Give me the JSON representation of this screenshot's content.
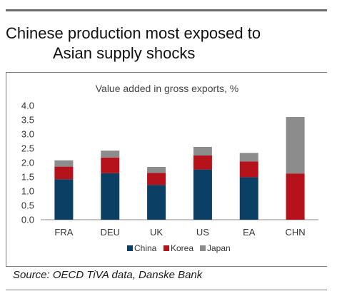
{
  "title": {
    "line1": "Chinese production most exposed to",
    "line2": "Asian supply shocks"
  },
  "source": "Source: OECD TiVA data, Danske Bank",
  "chart_data": {
    "type": "bar",
    "stacked": true,
    "title": "Value added in gross exports, %",
    "xlabel": "",
    "ylabel": "",
    "categories": [
      "FRA",
      "DEU",
      "UK",
      "US",
      "EA",
      "CHN"
    ],
    "series": [
      {
        "name": "China",
        "color": "#0b3f63",
        "values": [
          1.42,
          1.63,
          1.22,
          1.76,
          1.49,
          0
        ]
      },
      {
        "name": "Korea",
        "color": "#b5121b",
        "values": [
          0.44,
          0.55,
          0.42,
          0.49,
          0.55,
          1.62
        ]
      },
      {
        "name": "Japan",
        "color": "#8c8c8c",
        "values": [
          0.22,
          0.24,
          0.21,
          0.3,
          0.3,
          1.98
        ]
      }
    ],
    "ylim": [
      0,
      4.0
    ],
    "yticks": [
      "0.0",
      "0.5",
      "1.0",
      "1.5",
      "2.0",
      "2.5",
      "3.0",
      "3.5",
      "4.0"
    ],
    "grid": false,
    "legend_position": "bottom"
  }
}
